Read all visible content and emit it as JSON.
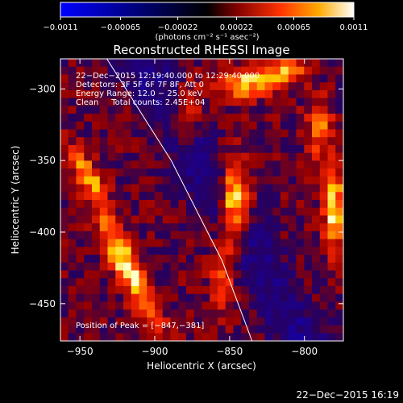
{
  "chart_data": {
    "type": "heatmap",
    "title": "Reconstructed RHESSI Image",
    "xlabel": "Heliocentric X (arcsec)",
    "ylabel": "Heliocentric Y (arcsec)",
    "xlim": [
      -963,
      -774
    ],
    "ylim": [
      -476,
      -279
    ],
    "x_ticks": [
      -950,
      -900,
      -850,
      -800
    ],
    "y_ticks": [
      -450,
      -400,
      -350,
      -300
    ],
    "colorbar": {
      "range": [
        -0.0011,
        0.0011
      ],
      "tick_values": [
        -0.0011,
        -0.00065,
        -0.00022,
        0.00022,
        0.00065,
        0.0011
      ],
      "tick_labels": [
        "−0.0011",
        "−0.00065",
        "−0.00022",
        "0.00022",
        "0.00065",
        "0.0011"
      ],
      "unit_label": "(photons cm⁻² s⁻¹ asec⁻²)"
    },
    "annotations": [
      "22−Dec−2015 12:19:40.000 to 12:29:40.000",
      "Detectors: 3F 5F 6F 7F 8F, Att 0",
      "Energy Range: 12.0 − 25.0 keV",
      "Clean     Total counts: 2.45E+04"
    ],
    "peak_label": "Position of Peak = [−847,−381]",
    "peak_position": [
      -847,
      -381
    ],
    "grid": false,
    "colormap": "red-temperature",
    "limb_curve": [
      [
        -932,
        -279
      ],
      [
        -889,
        -350
      ],
      [
        -855,
        -420
      ],
      [
        -835,
        -476
      ]
    ],
    "sources": [
      {
        "x": -847,
        "y": -380,
        "sx": 7,
        "sy": 20,
        "amp": 1.0,
        "rot": 0
      },
      {
        "x": -855,
        "y": -430,
        "sx": 6,
        "sy": 18,
        "amp": 0.45,
        "rot": 0
      },
      {
        "x": -918,
        "y": -425,
        "sx": 6,
        "sy": 30,
        "amp": 0.9,
        "rot": -0.45
      },
      {
        "x": -945,
        "y": -360,
        "sx": 5,
        "sy": 15,
        "amp": 0.65,
        "rot": -0.5
      },
      {
        "x": -780,
        "y": -385,
        "sx": 5,
        "sy": 20,
        "amp": 0.85,
        "rot": 0
      },
      {
        "x": -790,
        "y": -328,
        "sx": 6,
        "sy": 15,
        "amp": 0.55,
        "rot": 0
      },
      {
        "x": -880,
        "y": -318,
        "sx": 8,
        "sy": 14,
        "amp": 0.5,
        "rot": 0
      },
      {
        "x": -840,
        "y": -296,
        "sx": 14,
        "sy": 7,
        "amp": 0.75,
        "rot": 0
      },
      {
        "x": -812,
        "y": -288,
        "sx": 10,
        "sy": 6,
        "amp": 0.6,
        "rot": 0
      }
    ]
  },
  "footer_timestamp": "22−Dec−2015 16:19"
}
